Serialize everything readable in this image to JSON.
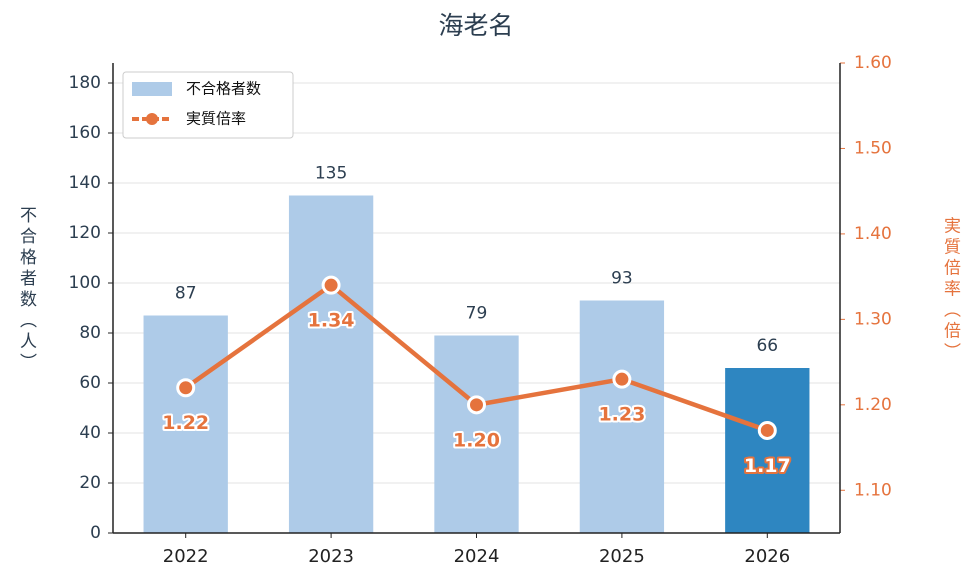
{
  "chart_data": {
    "type": "combo",
    "title": "海老名",
    "categories": [
      "2022",
      "2023",
      "2024",
      "2025",
      "2026"
    ],
    "ylabel": "不合格者数（人）",
    "y2label": "実質倍率（倍）",
    "ylim": [
      0,
      188
    ],
    "yticks": [
      0,
      20,
      40,
      60,
      80,
      100,
      120,
      140,
      160,
      180
    ],
    "y2lim": [
      1.05,
      1.6
    ],
    "y2ticks": [
      {
        "value": 1.1,
        "label": "1.10"
      },
      {
        "value": 1.2,
        "label": "1.20"
      },
      {
        "value": 1.3,
        "label": "1.30"
      },
      {
        "value": 1.4,
        "label": "1.40"
      },
      {
        "value": 1.5,
        "label": "1.50"
      },
      {
        "value": 1.6,
        "label": "1.60"
      }
    ],
    "grid": true,
    "legend": "upper left",
    "series": [
      {
        "name": "不合格者数",
        "type": "bar",
        "color": "#aecbe8",
        "colors": [
          "#aecbe8",
          "#aecbe8",
          "#aecbe8",
          "#aecbe8",
          "#2e86c1"
        ],
        "values": [
          87,
          135,
          79,
          93,
          66
        ]
      },
      {
        "name": "実質倍率",
        "type": "line",
        "axis": "y2",
        "color": "#e5733d",
        "values": [
          1.22,
          1.34,
          1.2,
          1.23,
          1.17
        ],
        "value_labels": [
          "1.22",
          "1.34",
          "1.20",
          "1.23",
          "1.17"
        ]
      }
    ]
  }
}
